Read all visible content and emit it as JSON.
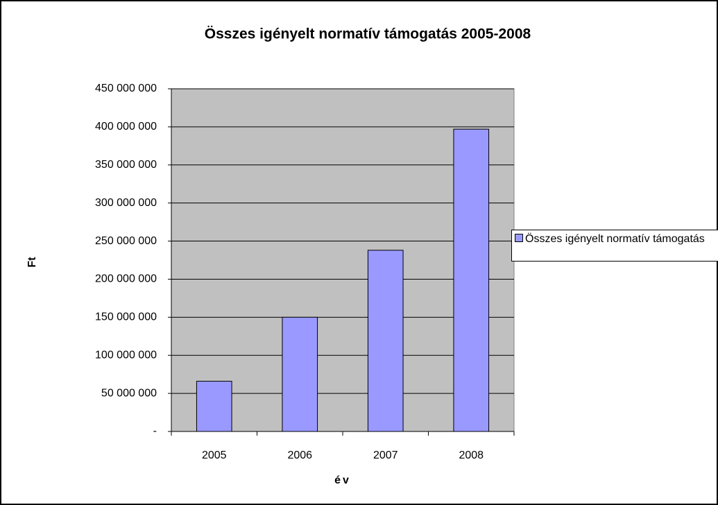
{
  "chart_data": {
    "type": "bar",
    "title": "Összes igényelt normatív támogatás 2005-2008",
    "x_label": "év",
    "y_label": "Ft",
    "categories": [
      "2005",
      "2006",
      "2007",
      "2008"
    ],
    "series": [
      {
        "name": "Összes igényelt normatív támogatás",
        "color": "#9999ff",
        "values": [
          66000000,
          150000000,
          238000000,
          397000000
        ]
      }
    ],
    "ylim": [
      0,
      450000000
    ],
    "yticks": [
      {
        "value": 0,
        "label": "-"
      },
      {
        "value": 50000000,
        "label": "50 000 000"
      },
      {
        "value": 100000000,
        "label": "100 000 000"
      },
      {
        "value": 150000000,
        "label": "150 000 000"
      },
      {
        "value": 200000000,
        "label": "200 000 000"
      },
      {
        "value": 250000000,
        "label": "250 000 000"
      },
      {
        "value": 300000000,
        "label": "300 000 000"
      },
      {
        "value": 350000000,
        "label": "350 000 000"
      },
      {
        "value": 400000000,
        "label": "400 000 000"
      },
      {
        "value": 450000000,
        "label": "450 000 000"
      }
    ],
    "grid": true,
    "legend": "right"
  }
}
